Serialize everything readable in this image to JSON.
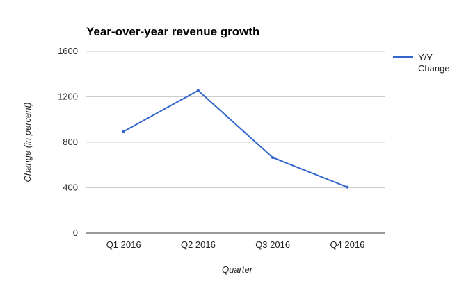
{
  "chart_data": {
    "type": "line",
    "title": "Year-over-year revenue growth",
    "xlabel": "Quarter",
    "ylabel": "Change (in percent)",
    "categories": [
      "Q1 2016",
      "Q2 2016",
      "Q3 2016",
      "Q4 2016"
    ],
    "series": [
      {
        "name": "Y/Y Change",
        "name_lines": [
          "Y/Y",
          "Change"
        ],
        "values": [
          895,
          1255,
          665,
          405
        ],
        "color": "#3366cc"
      }
    ],
    "ylim": [
      0,
      1600
    ],
    "yticks": [
      "0",
      "400",
      "800",
      "1200",
      "1600"
    ],
    "grid": true,
    "legend_position": "right"
  }
}
